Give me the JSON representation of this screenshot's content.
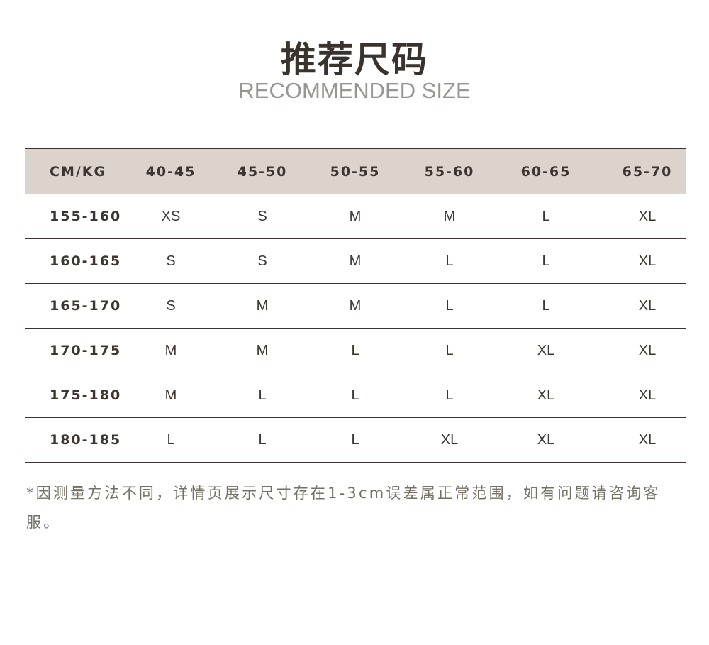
{
  "title": "推荐尺码",
  "subtitle": "RECOMMENDED SIZE",
  "table": {
    "headers": [
      "CM/KG",
      "40-45",
      "45-50",
      "50-55",
      "55-60",
      "60-65",
      "65-70"
    ],
    "rows": [
      [
        "155-160",
        "XS",
        "S",
        "M",
        "M",
        "L",
        "XL"
      ],
      [
        "160-165",
        "S",
        "S",
        "M",
        "L",
        "L",
        "XL"
      ],
      [
        "165-170",
        "S",
        "M",
        "M",
        "L",
        "L",
        "XL"
      ],
      [
        "170-175",
        "M",
        "M",
        "L",
        "L",
        "XL",
        "XL"
      ],
      [
        "175-180",
        "M",
        "L",
        "L",
        "L",
        "XL",
        "XL"
      ],
      [
        "180-185",
        "L",
        "L",
        "L",
        "XL",
        "XL",
        "XL"
      ]
    ]
  },
  "note": "*因测量方法不同，详情页展示尺寸存在1-3cm误差属正常范围，如有问题请咨询客服。",
  "colors": {
    "header_bg": "#dcd3cd",
    "text": "#3d3530",
    "note": "#757065"
  }
}
